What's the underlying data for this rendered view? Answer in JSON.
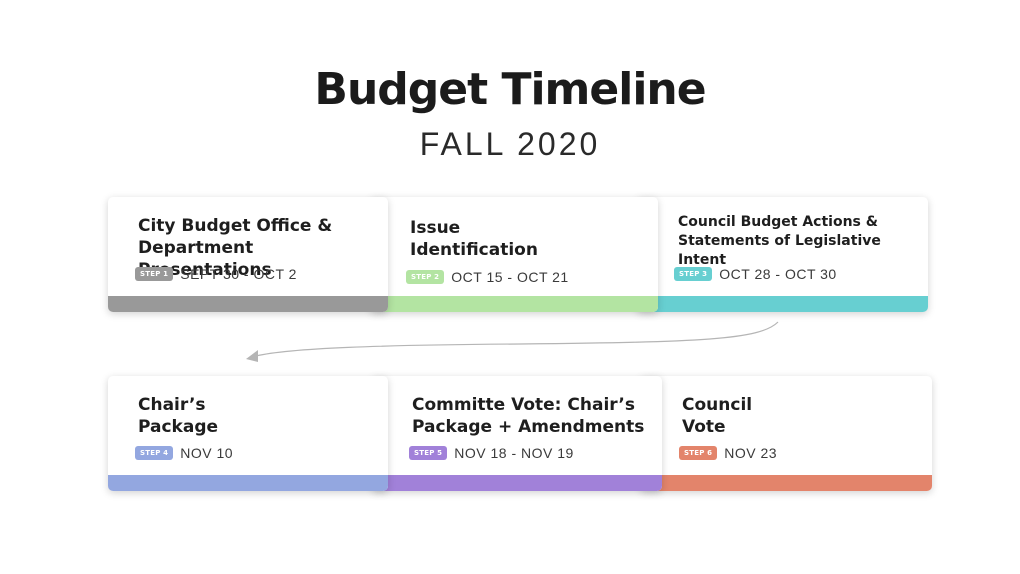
{
  "title": "Budget Timeline",
  "subtitle": "FALL 2020",
  "steps": [
    {
      "label": "City Budget Office &\nDepartment Presentations",
      "step": "STEP 1",
      "date": "SEPT 30 - OCT 2",
      "color": "#999999"
    },
    {
      "label": "Issue\nIdentification",
      "step": "STEP 2",
      "date": "OCT 15 - OCT 21",
      "color": "#b3e4a2"
    },
    {
      "label": "Council Budget Actions &\nStatements of Legislative Intent",
      "step": "STEP 3",
      "date": "OCT 28 - OCT 30",
      "color": "#67cfd1"
    },
    {
      "label": "Chair’s\nPackage",
      "step": "STEP 4",
      "date": "NOV 10",
      "color": "#93a7e0"
    },
    {
      "label": "Committe Vote: Chair’s\nPackage + Amendments",
      "step": "STEP 5",
      "date": "NOV 18 - NOV 19",
      "color": "#a181d9"
    },
    {
      "label": "Council\nVote",
      "step": "STEP 6",
      "date": "NOV 23",
      "color": "#e3846b"
    }
  ]
}
